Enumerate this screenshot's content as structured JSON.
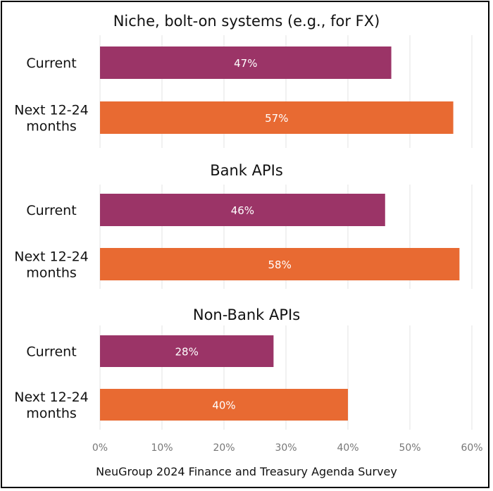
{
  "colors": {
    "current": "#9B3467",
    "next": "#E86A32",
    "grid": "#e3e3e3"
  },
  "footer": "NeuGroup 2024 Finance and Treasury Agenda Survey",
  "chart_data": [
    {
      "type": "bar",
      "orientation": "horizontal",
      "title": "Niche, bolt-on systems (e.g., for FX)",
      "categories": [
        [
          "Current"
        ],
        [
          "Next 12-24",
          "months"
        ]
      ],
      "values": [
        47,
        57
      ],
      "value_labels": [
        "47%",
        "57%"
      ],
      "xlim": [
        0,
        60
      ]
    },
    {
      "type": "bar",
      "orientation": "horizontal",
      "title": "Bank APIs",
      "categories": [
        [
          "Current"
        ],
        [
          "Next 12-24",
          "months"
        ]
      ],
      "values": [
        46,
        58
      ],
      "value_labels": [
        "46%",
        "58%"
      ],
      "xlim": [
        0,
        60
      ]
    },
    {
      "type": "bar",
      "orientation": "horizontal",
      "title": "Non-Bank APIs",
      "categories": [
        [
          "Current"
        ],
        [
          "Next 12-24",
          "months"
        ]
      ],
      "values": [
        28,
        40
      ],
      "value_labels": [
        "28%",
        "40%"
      ],
      "xlim": [
        0,
        60
      ]
    }
  ],
  "x_ticks": [
    0,
    10,
    20,
    30,
    40,
    50,
    60
  ],
  "x_tick_labels": [
    "0%",
    "10%",
    "20%",
    "30%",
    "40%",
    "50%",
    "60%"
  ]
}
